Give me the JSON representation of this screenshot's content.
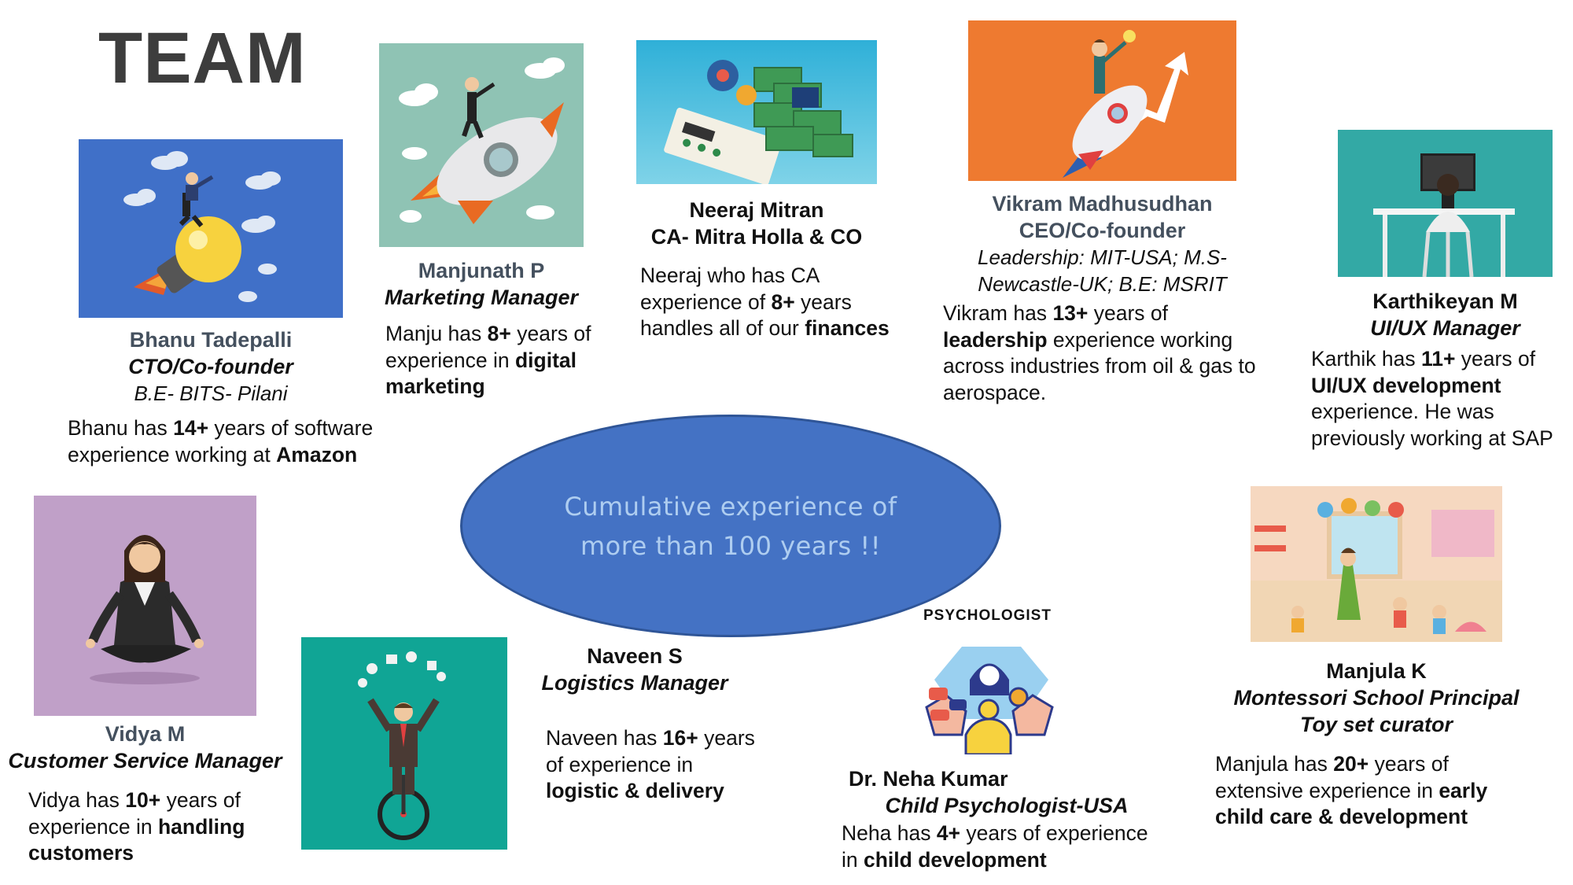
{
  "page": {
    "title": "TEAM"
  },
  "center": {
    "line1": "Cumulative experience of",
    "line2": "more than 100 years !!"
  },
  "psychologist_label": "PSYCHOLOGIST",
  "members": {
    "bhanu": {
      "name": "Bhanu Tadepalli",
      "role": "CTO/Co-founder",
      "edu": "B.E- BITS- Pilani",
      "desc": {
        "p1": "Bhanu has ",
        "b1": "14+",
        "p2": " years of software",
        "p3": "experience working at ",
        "b2": "Amazon"
      }
    },
    "manjunath": {
      "name": "Manjunath P",
      "role": "Marketing Manager",
      "desc": {
        "p1": "Manju has ",
        "b1": "8+",
        "p2": " years of",
        "p3": "experience in ",
        "b2": "digital",
        "b3": "marketing"
      }
    },
    "neeraj": {
      "name": "Neeraj Mitran",
      "role": "CA- Mitra Holla & CO",
      "desc": {
        "p1": "Neeraj who has CA",
        "p2": "experience of ",
        "b1": "8+",
        "p3": " years",
        "p4": "handles all of our ",
        "b2": "finances"
      }
    },
    "vikram": {
      "name": "Vikram Madhusudhan",
      "role": "CEO/Co-founder",
      "edu1": "Leadership: MIT-USA; M.S-",
      "edu2": "Newcastle-UK; B.E: MSRIT",
      "desc": {
        "p1": "Vikram has ",
        "b1": "13+",
        "p2": " years of",
        "b2": "leadership",
        "p3": " experience working",
        "p4": "across industries from oil & gas to",
        "p5": "aerospace."
      }
    },
    "karthikeyan": {
      "name": "Karthikeyan M",
      "role": "UI/UX Manager",
      "desc": {
        "p1": "Karthik has ",
        "b1": "11+",
        "p2": " years of",
        "b2": "UI/UX development",
        "p3": "experience. He was",
        "p4": "previously working at SAP"
      }
    },
    "vidya": {
      "name": "Vidya M",
      "role": "Customer Service Manager",
      "desc": {
        "p1": "Vidya has ",
        "b1": "10+",
        "p2": " years of",
        "p3": "experience in ",
        "b2": "handling",
        "b3": "customers"
      }
    },
    "naveen": {
      "name": "Naveen S",
      "role": "Logistics Manager",
      "desc": {
        "p1": "Naveen has ",
        "b1": "16+",
        "p2": " years",
        "p3": "of experience in",
        "b2": "logistic & delivery"
      }
    },
    "neha": {
      "name": "Dr. Neha Kumar",
      "role": "Child Psychologist-USA",
      "desc": {
        "p1": "Neha has ",
        "b1": "4+",
        "p2": " years of experience",
        "p3": "in ",
        "b2": "child development"
      }
    },
    "manjula": {
      "name": "Manjula K",
      "role1": "Montessori School Principal",
      "role2": "Toy set curator",
      "desc": {
        "p1": "Manjula has ",
        "b1": "20+",
        "p2": " years of",
        "p3": "extensive experience in ",
        "b2": "early",
        "b3": "child care & development"
      }
    }
  },
  "images": {
    "bhanu": {
      "icon": "rocket-lightbulb-icon",
      "bg": "#4070c8"
    },
    "manjunath": {
      "icon": "rocket-businessman-icon",
      "bg": "#8fc3b4"
    },
    "neeraj": {
      "icon": "money-tax-icon",
      "bg": "#39b8da"
    },
    "vikram": {
      "icon": "rocket-growth-icon",
      "bg": "#ee7a30"
    },
    "karthikeyan": {
      "icon": "desk-designer-icon",
      "bg": "#33a9a5"
    },
    "vidya": {
      "icon": "meditation-woman-icon",
      "bg": "#c0a0c8"
    },
    "naveen": {
      "icon": "juggler-unicycle-icon",
      "bg": "#10a595"
    },
    "neha": {
      "icon": "psychologist-icon",
      "bg": "#ffffff"
    },
    "manjula": {
      "icon": "classroom-icon",
      "bg": "#f4e4cc"
    }
  }
}
